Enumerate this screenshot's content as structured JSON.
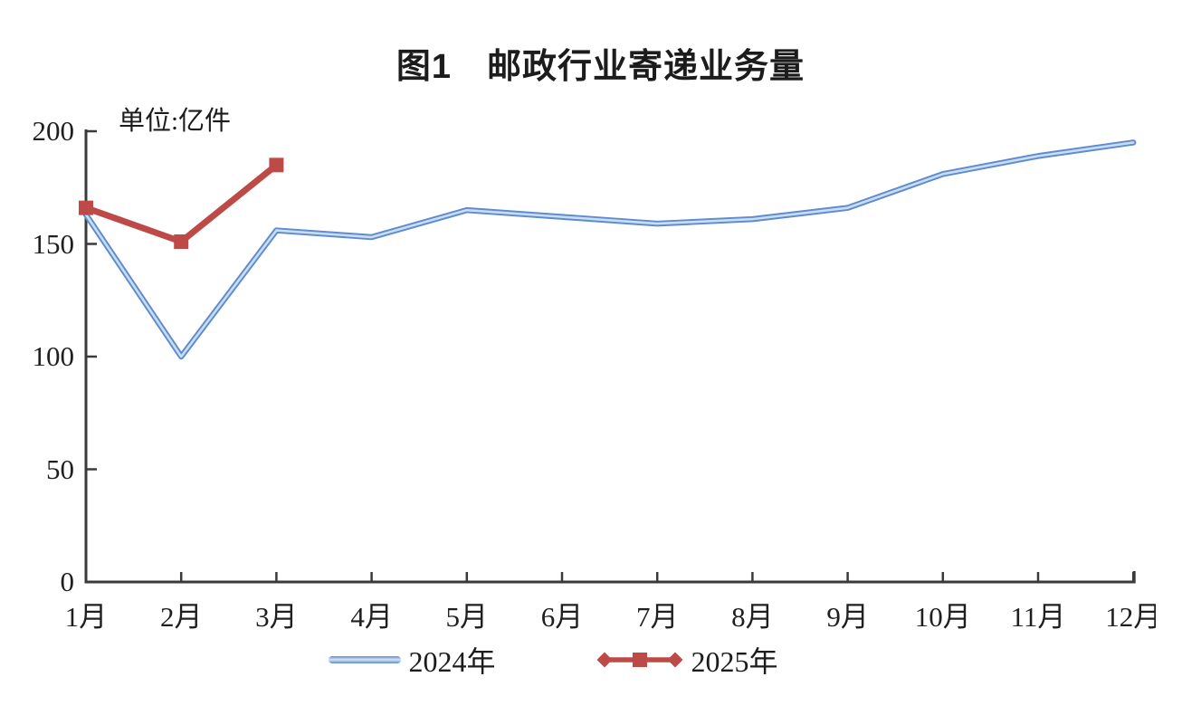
{
  "chart": {
    "title": "图1　邮政行业寄递业务量",
    "unit_label": "单位:亿件"
  },
  "chart_data": {
    "type": "line",
    "title": "图1　邮政行业寄递业务量",
    "xlabel": "",
    "ylabel": "单位:亿件",
    "categories": [
      "1月",
      "2月",
      "3月",
      "4月",
      "5月",
      "6月",
      "7月",
      "8月",
      "9月",
      "10月",
      "11月",
      "12月"
    ],
    "series": [
      {
        "name": "2024年",
        "color": "#5E8CCE",
        "highlight_color": "#caddf3",
        "values": [
          163,
          100,
          156,
          153,
          165,
          162,
          159,
          161,
          166,
          181,
          189,
          195
        ]
      },
      {
        "name": "2025年",
        "color": "#BE4A47",
        "values": [
          166,
          151,
          185
        ]
      }
    ],
    "ylim": [
      0,
      200
    ],
    "yticks": [
      0,
      50,
      100,
      150,
      200
    ],
    "grid": false,
    "legend_position": "bottom",
    "axis_color": "#3a3a3a"
  }
}
